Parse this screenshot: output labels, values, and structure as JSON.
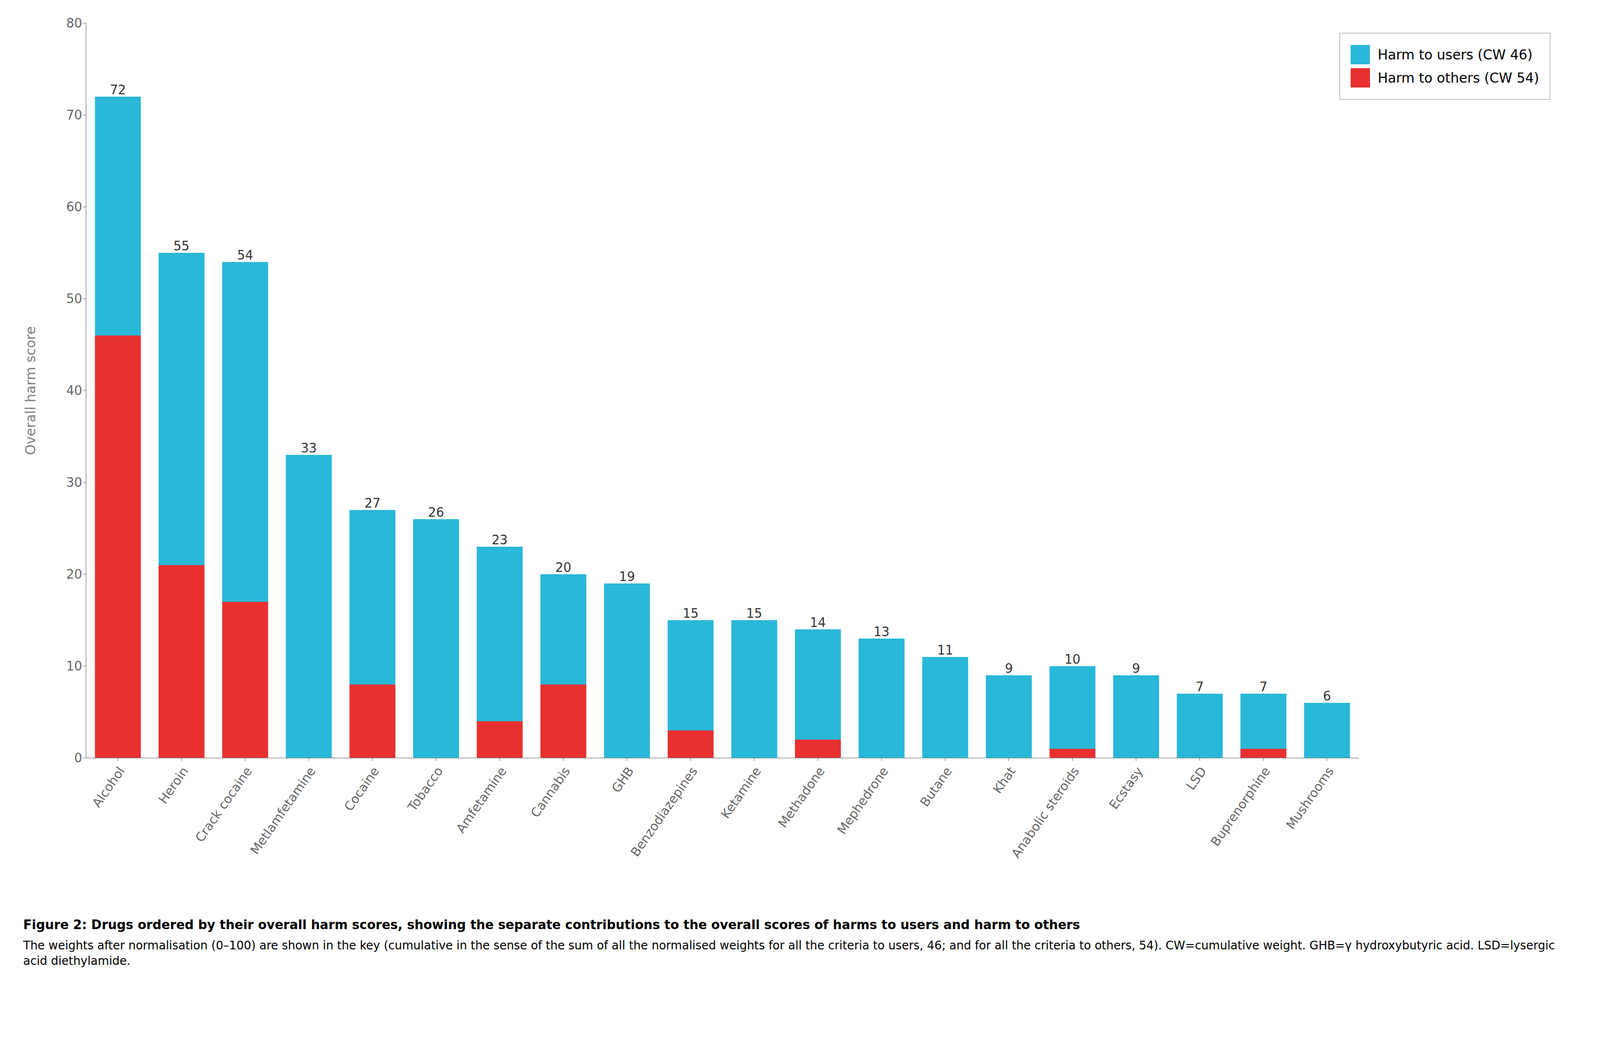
{
  "chart_data": {
    "type": "bar",
    "title": "Figure 2: Drugs ordered by their overall harm scores, showing the separate contributions to the overall scores of harms to users and harm to others",
    "subtitle": "The weights after normalisation (0–100) are shown in the key (cumulative in the sense of the sum of all the normalised weights for all the criteria to users, 46; and for all the criteria to others, 54). CW=cumulative weight. GHB=γ hydroxybutyric acid. LSD=lysergic acid diethylamide.",
    "y_label": "Overall harm score",
    "categories": [
      "Alcohol",
      "Heroin",
      "Crack cocaine",
      "Metlamfetamine",
      "Cocaine",
      "Tobacco",
      "Amfetamine",
      "Cannabis",
      "GHB",
      "Benzodiazepines",
      "Ketamine",
      "Methadone",
      "Mephedrone",
      "Butane",
      "Khat",
      "Anabolic steroids",
      "Ecstasy",
      "LSD",
      "Buprenorphine",
      "Mushrooms"
    ],
    "series": [
      {
        "name": "Harm to others (CW 54)",
        "color": "#E83030",
        "values": [
          46,
          21,
          17,
          0,
          8,
          0,
          4,
          8,
          0,
          3,
          0,
          2,
          0,
          0,
          0,
          1,
          0,
          0,
          1,
          0
        ]
      },
      {
        "name": "Harm to users (CW 46)",
        "color": "#29B8D8",
        "values": [
          26,
          34,
          37,
          33,
          19,
          26,
          19,
          12,
          19,
          12,
          15,
          12,
          13,
          11,
          9,
          9,
          9,
          7,
          6,
          6
        ]
      }
    ],
    "totals": [
      72,
      55,
      54,
      33,
      27,
      26,
      23,
      20,
      19,
      15,
      15,
      14,
      13,
      11,
      9,
      10,
      9,
      7,
      7,
      6
    ],
    "stacked": true,
    "ylim": [
      0,
      80
    ],
    "yticks": [
      0,
      10,
      20,
      30,
      40,
      50,
      60,
      70,
      80
    ],
    "grid": false,
    "legend": "upper right"
  }
}
